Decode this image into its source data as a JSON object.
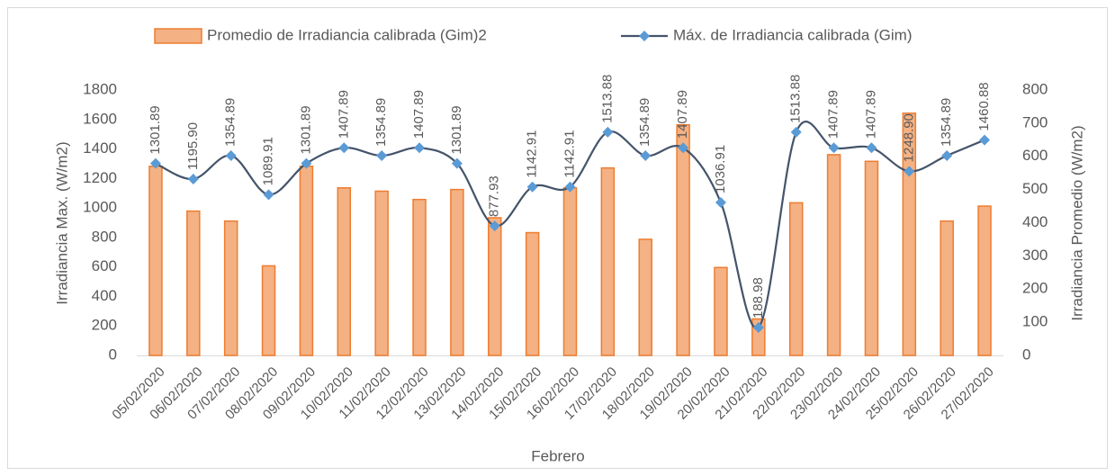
{
  "chart_data": {
    "type": "bar-line",
    "xlabel": "Febrero",
    "ylabel": "Irradiancia Max. (W/m2)",
    "y2label": "Irradiancia Promedio (W/m2)",
    "categories": [
      "05/02/2020",
      "06/02/2020",
      "07/02/2020",
      "08/02/2020",
      "09/02/2020",
      "10/02/2020",
      "11/02/2020",
      "12/02/2020",
      "13/02/2020",
      "14/02/2020",
      "15/02/2020",
      "16/02/2020",
      "17/02/2020",
      "18/02/2020",
      "19/02/2020",
      "20/02/2020",
      "21/02/2020",
      "22/02/2020",
      "23/02/2020",
      "24/02/2020",
      "25/02/2020",
      "26/02/2020",
      "27/02/2020"
    ],
    "series": [
      {
        "name": "Promedio de Irradiancia calibrada (Gim)2",
        "type": "bar",
        "axis": "y2",
        "color": "#f4b183",
        "edge": "#ed7d31",
        "values": [
          570,
          435,
          405,
          270,
          570,
          505,
          495,
          470,
          500,
          415,
          370,
          505,
          565,
          350,
          695,
          265,
          110,
          460,
          605,
          585,
          730,
          405,
          450
        ]
      },
      {
        "name": "Máx. de Irradiancia calibrada (Gim)",
        "type": "line",
        "axis": "y",
        "color": "#44546a",
        "marker_color": "#5b9bd5",
        "values": [
          1301.89,
          1195.9,
          1354.89,
          1089.91,
          1301.89,
          1407.89,
          1354.89,
          1407.89,
          1301.89,
          877.93,
          1142.91,
          1142.91,
          1513.88,
          1354.89,
          1407.89,
          1036.91,
          188.98,
          1513.88,
          1407.89,
          1407.89,
          1248.9,
          1354.89,
          1460.88
        ],
        "value_labels": [
          "1301.89",
          "1195.90",
          "1354.89",
          "1089.91",
          "1301.89",
          "1407.89",
          "1354.89",
          "1407.89",
          "1301.89",
          "877.93",
          "1142.91",
          "1142.91",
          "1513.88",
          "1354.89",
          "1407.89",
          "1036.91",
          "188.98",
          "1513.88",
          "1407.89",
          "1407.89",
          "1248.90",
          "1354.89",
          "1460.88"
        ]
      }
    ],
    "ylim": [
      0,
      1800
    ],
    "yticks": [
      0,
      200,
      400,
      600,
      800,
      1000,
      1200,
      1400,
      1600,
      1800
    ],
    "y2lim": [
      0,
      800
    ],
    "y2ticks": [
      0,
      100,
      200,
      300,
      400,
      500,
      600,
      700,
      800
    ],
    "grid": false,
    "legend": "top"
  }
}
